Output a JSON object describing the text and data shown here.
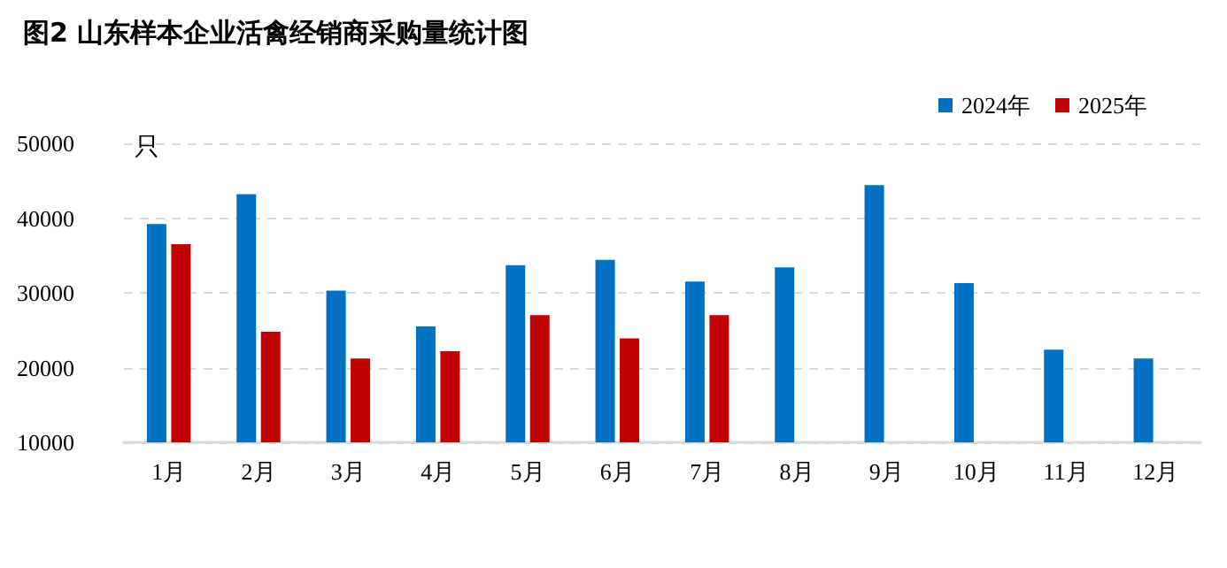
{
  "chart_data": {
    "type": "bar",
    "title": "图2 山东样本企业活禽经销商采购量统计图",
    "ylabel": "只",
    "categories": [
      "1月",
      "2月",
      "3月",
      "4月",
      "5月",
      "6月",
      "7月",
      "8月",
      "9月",
      "10月",
      "11月",
      "12月"
    ],
    "series": [
      {
        "name": "2024年",
        "color": "#0070c0",
        "values": [
          39200,
          43200,
          30300,
          25500,
          33700,
          34400,
          31500,
          33400,
          44400,
          31300,
          22400,
          21200
        ]
      },
      {
        "name": "2025年",
        "color": "#c00000",
        "values": [
          36500,
          24800,
          21200,
          22200,
          27000,
          23900,
          27000,
          null,
          null,
          null,
          null,
          null
        ]
      }
    ],
    "ylim": [
      10000,
      50000
    ],
    "yticks": [
      10000,
      20000,
      30000,
      40000,
      50000
    ],
    "grid": "y",
    "legend": "top right"
  }
}
